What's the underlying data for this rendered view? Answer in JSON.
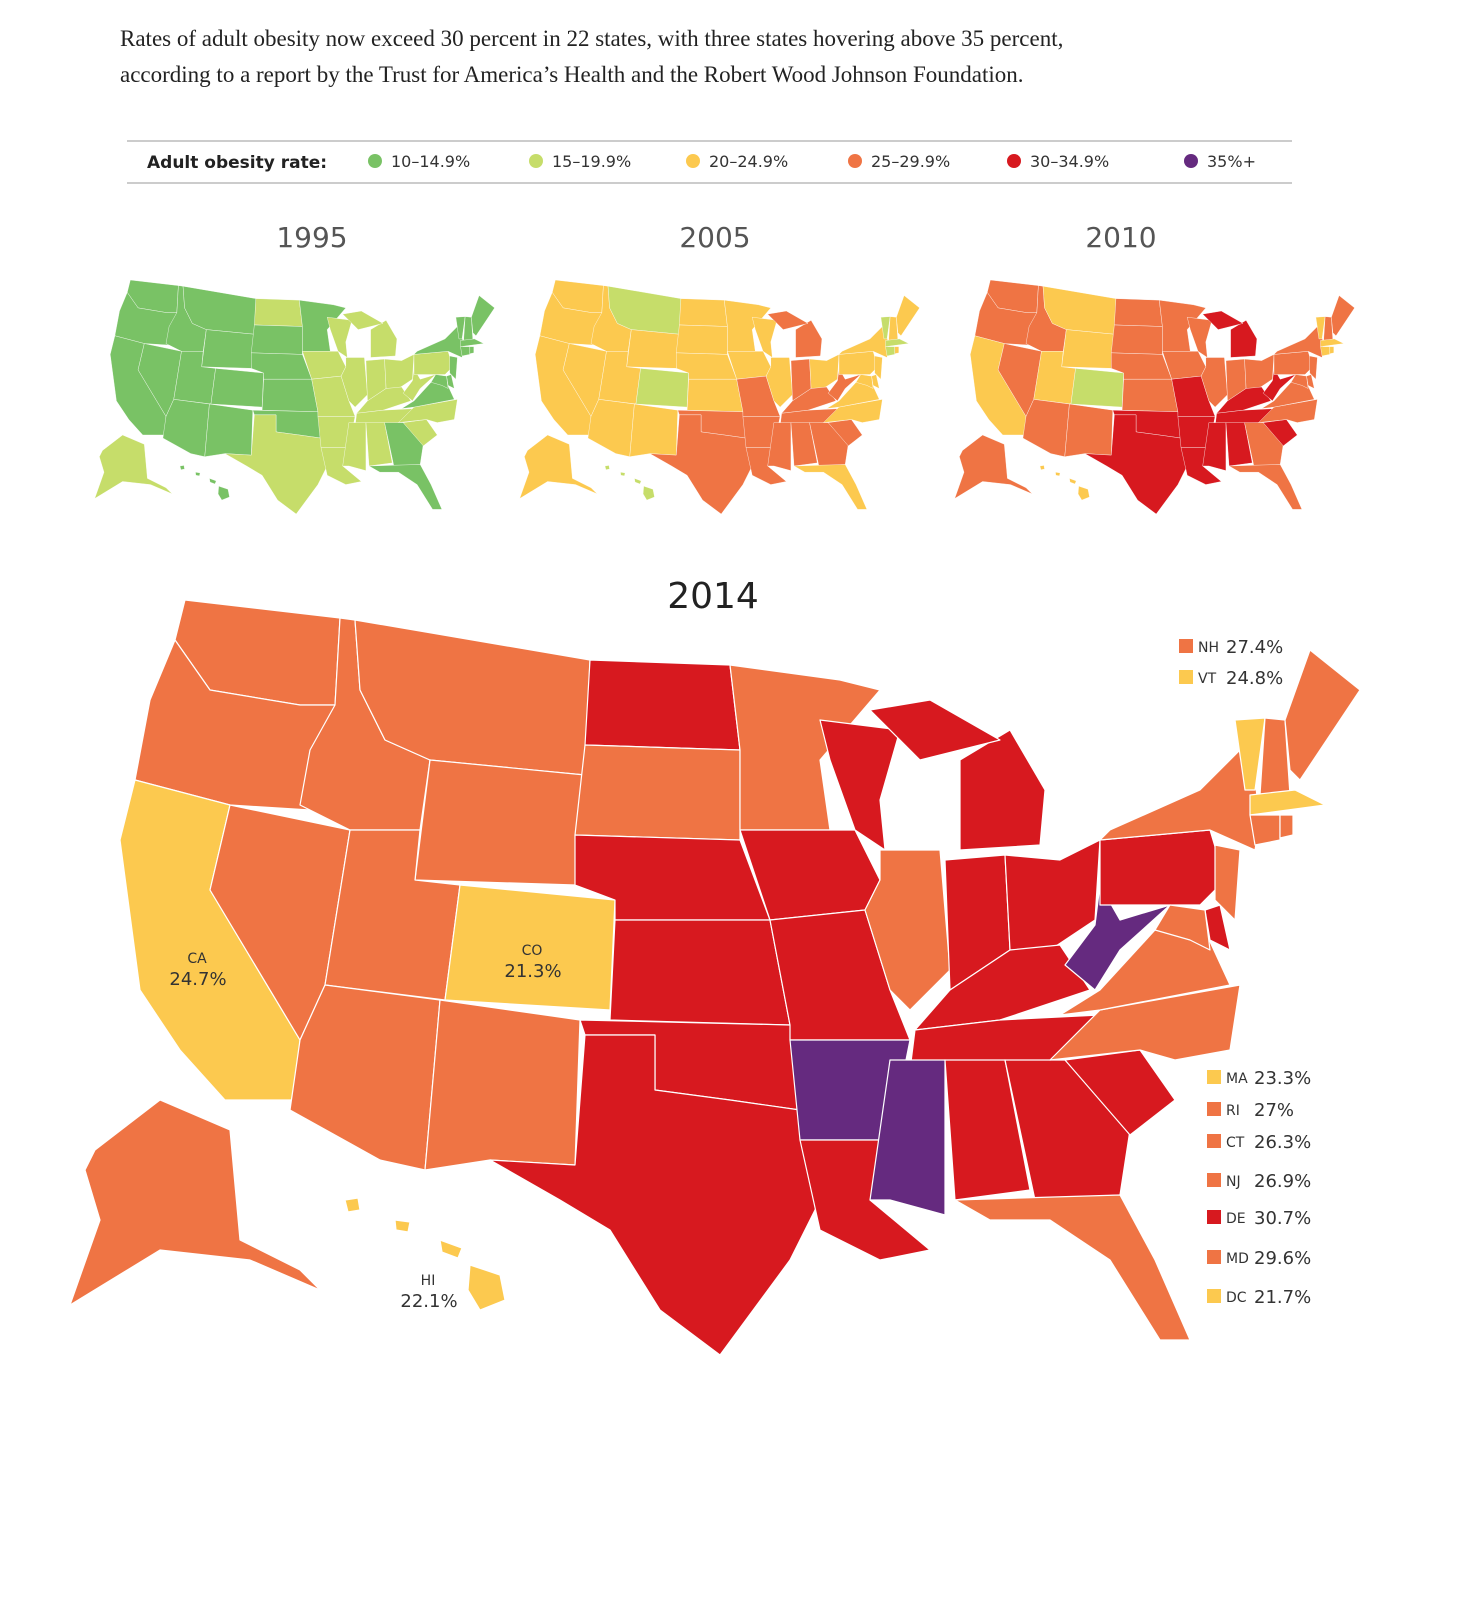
{
  "intro": [
    "Rates of adult obesity now exceed 30 percent in 22 states, with three states hovering above 35 percent,",
    "according to a report by the Trust for America’s Health and the Robert Wood Johnson Foundation."
  ],
  "legend": {
    "title": "Adult obesity rate:",
    "items": [
      {
        "label": "10–14.9%",
        "color": "#79c265"
      },
      {
        "label": "15–19.9%",
        "color": "#c6dd6a"
      },
      {
        "label": "20–24.9%",
        "color": "#fcc94f"
      },
      {
        "label": "25–29.9%",
        "color": "#ef7444"
      },
      {
        "label": "30–34.9%",
        "color": "#d7191f"
      },
      {
        "label": "35%+",
        "color": "#652a7f"
      }
    ]
  },
  "small_maps": [
    {
      "title": "1995"
    },
    {
      "title": "2005"
    },
    {
      "title": "2010"
    }
  ],
  "main_map": {
    "title": "2014",
    "map_labels": [
      {
        "state": "CA",
        "value": "24.7%"
      },
      {
        "state": "CO",
        "value": "21.3%"
      },
      {
        "state": "HI",
        "value": "22.1%"
      }
    ],
    "callouts": [
      {
        "state": "NH",
        "value": "27.4%"
      },
      {
        "state": "VT",
        "value": "24.8%"
      },
      {
        "state": "MA",
        "value": "23.3%"
      },
      {
        "state": "RI",
        "value": "27%"
      },
      {
        "state": "CT",
        "value": "26.3%"
      },
      {
        "state": "NJ",
        "value": "26.9%"
      },
      {
        "state": "DE",
        "value": "30.7%"
      },
      {
        "state": "MD",
        "value": "29.6%"
      },
      {
        "state": "DC",
        "value": "21.7%"
      }
    ]
  }
}
